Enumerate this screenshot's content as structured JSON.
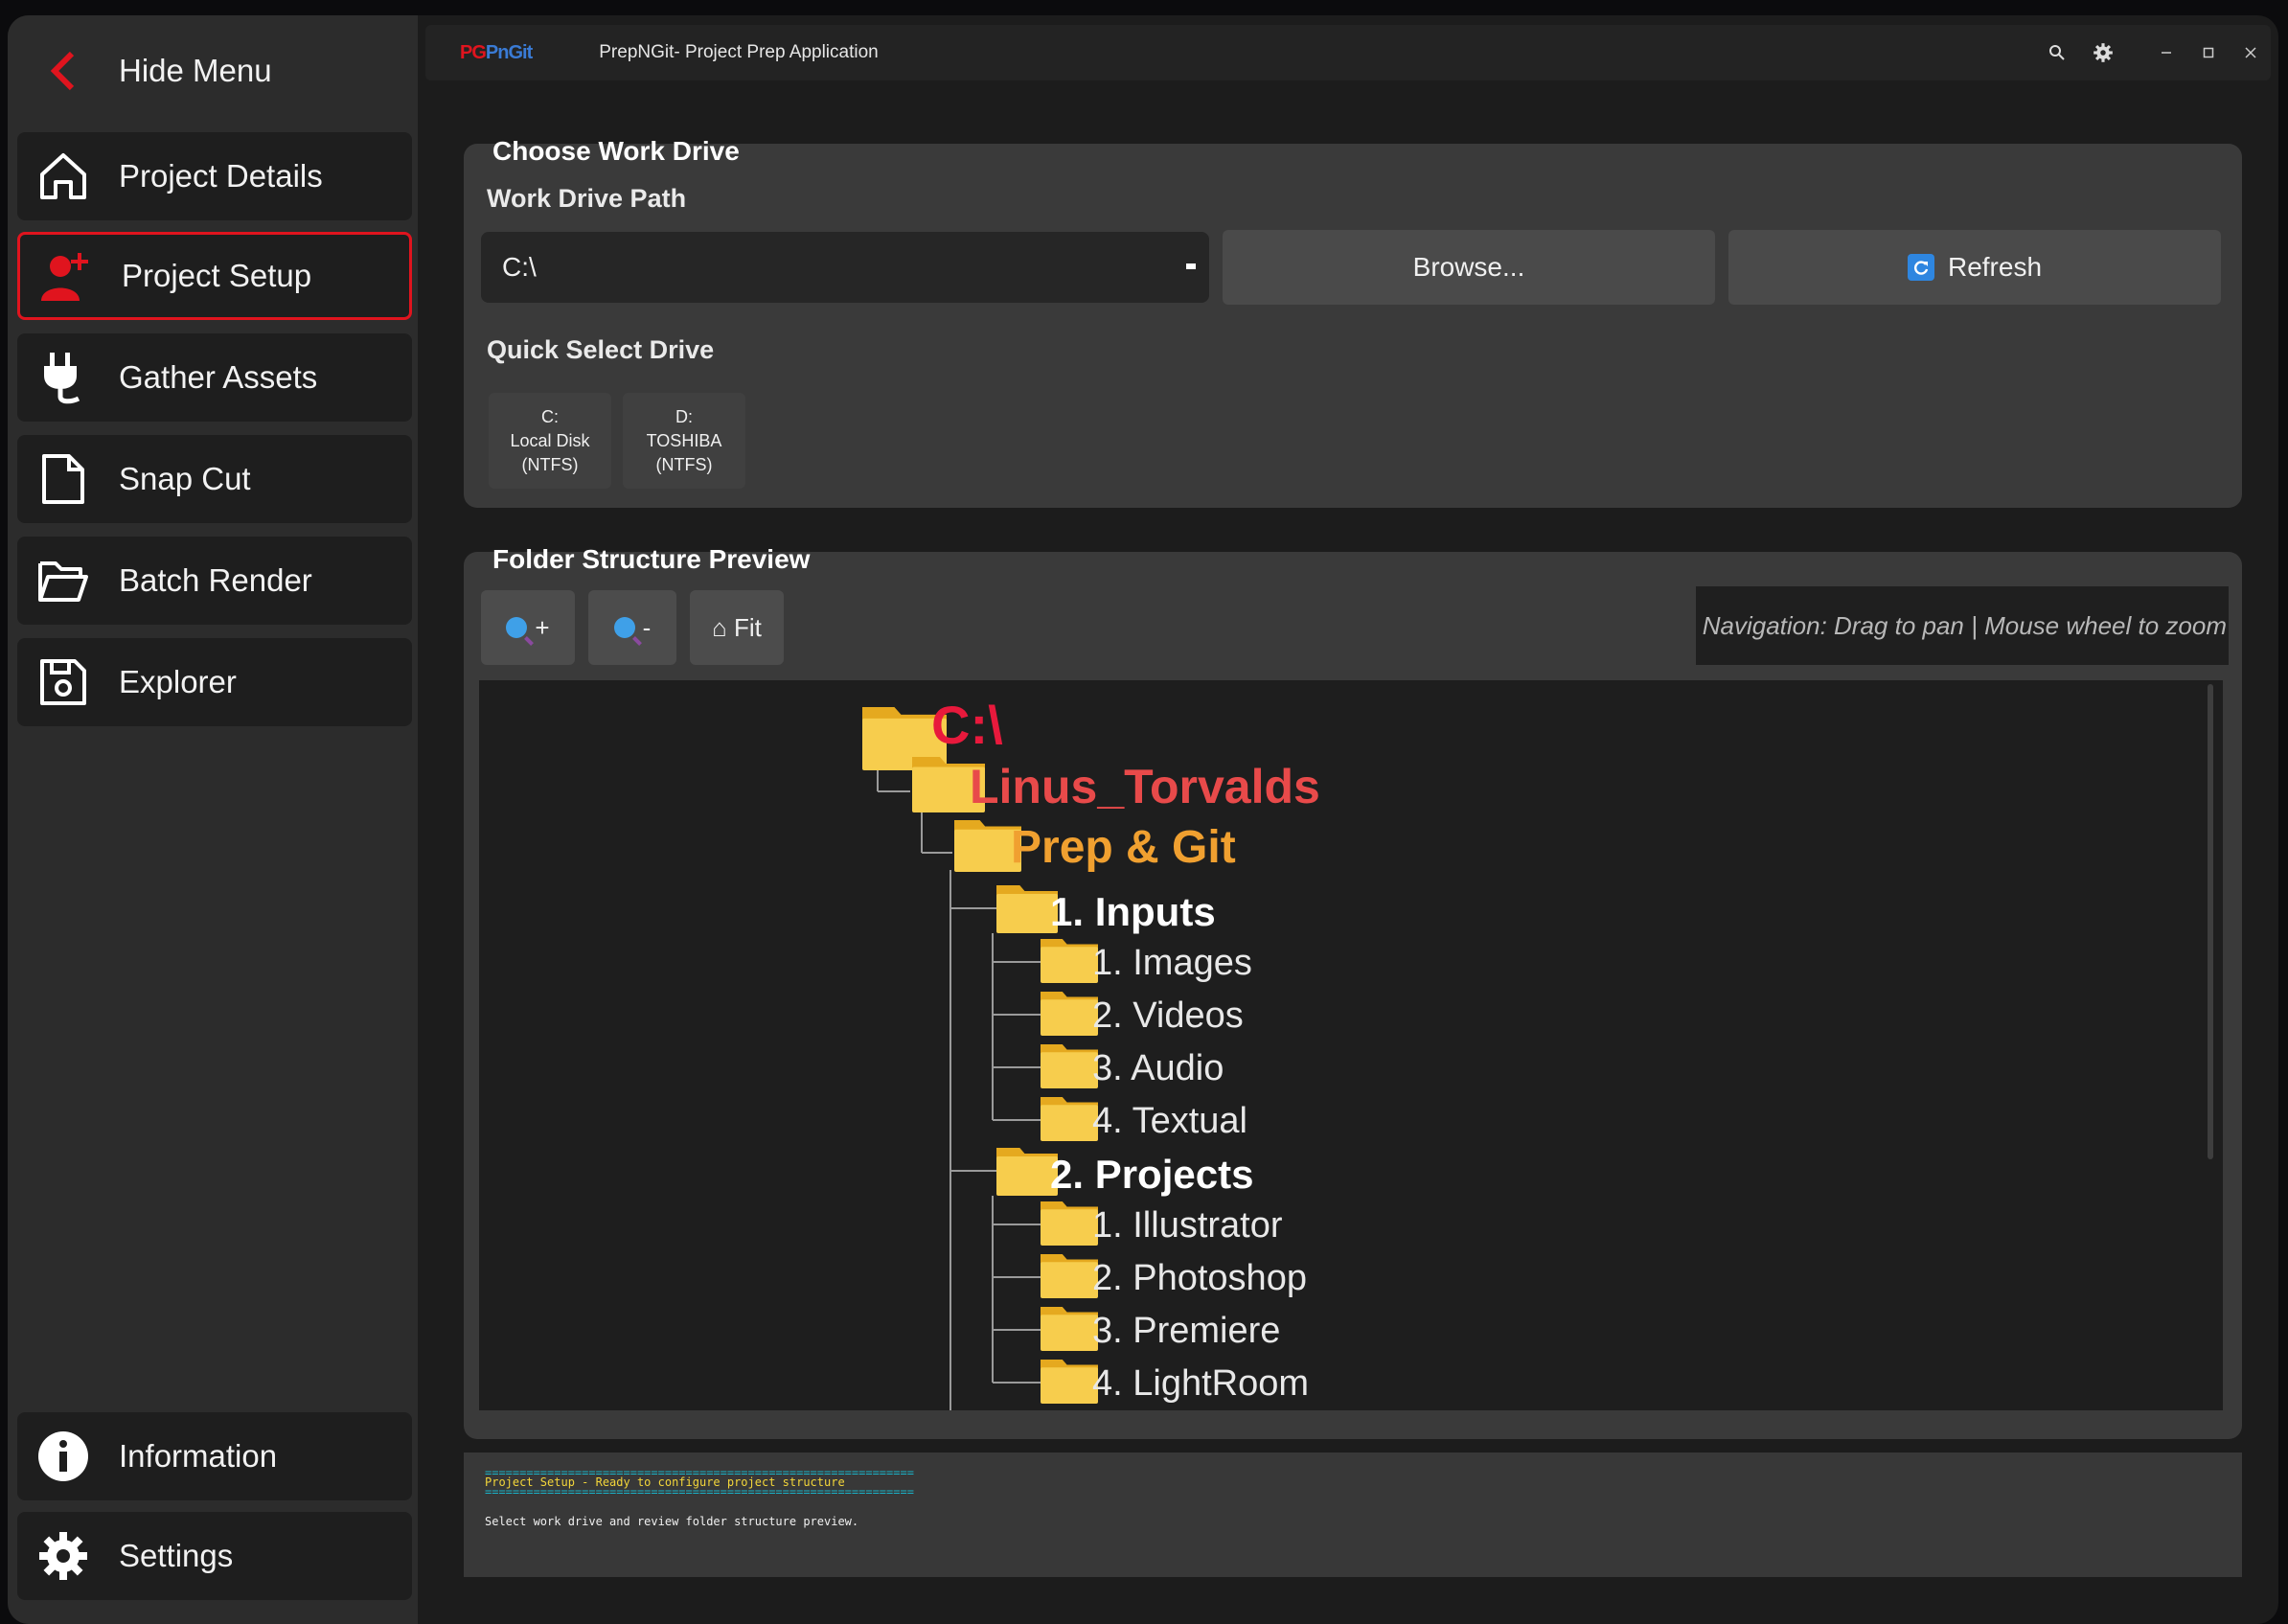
{
  "app": {
    "logo": "PnGit",
    "logo_prefix": "PG",
    "title": "PrepNGit- Project Prep Application"
  },
  "sidebar": {
    "hide_menu": "Hide Menu",
    "items": [
      {
        "label": "Project Details",
        "icon": "home-icon"
      },
      {
        "label": "Project Setup",
        "icon": "add-user-icon",
        "active": true
      },
      {
        "label": "Gather Assets",
        "icon": "plug-icon"
      },
      {
        "label": "Snap Cut",
        "icon": "document-icon"
      },
      {
        "label": "Batch Render",
        "icon": "folder-open-icon"
      },
      {
        "label": "Explorer",
        "icon": "save-disk-icon"
      }
    ],
    "bottom_items": [
      {
        "label": "Information",
        "icon": "info-icon"
      },
      {
        "label": "Settings",
        "icon": "gear-icon"
      }
    ]
  },
  "work_drive": {
    "title": "Choose Work Drive",
    "path_label": "Work Drive Path",
    "path_value": "C:\\",
    "browse_label": "Browse...",
    "refresh_label": "Refresh",
    "quick_label": "Quick Select Drive",
    "drives": [
      {
        "letter": "C:",
        "name": "Local Disk",
        "fs": "(NTFS)"
      },
      {
        "letter": "D:",
        "name": "TOSHIBA",
        "fs": "(NTFS)"
      }
    ]
  },
  "preview": {
    "title": "Folder Structure Preview",
    "zoom_in": "+",
    "zoom_out": "-",
    "fit": "⌂ Fit",
    "nav_hint": "Navigation: Drag to pan | Mouse wheel to zoom",
    "tree": {
      "root": "C:\\",
      "user": "Linus_Torvalds",
      "project": "Prep & Git",
      "groups": [
        {
          "name": "1. Inputs",
          "children": [
            "1. Images",
            "2. Videos",
            "3. Audio",
            "4. Textual"
          ]
        },
        {
          "name": "2. Projects",
          "children": [
            "1. Illustrator",
            "2. Photoshop",
            "3. Premiere",
            "4. LightRoom"
          ]
        }
      ]
    }
  },
  "log": {
    "separator": "==============================================================",
    "status": "Project Setup - Ready to configure project structure",
    "message": "Select work drive and review folder structure preview."
  },
  "colors": {
    "accent": "#e0141e",
    "root_text": "#e8193c",
    "user_text": "#e84a4a",
    "project_text": "#f0a030",
    "folder": "#f7cd4d"
  }
}
